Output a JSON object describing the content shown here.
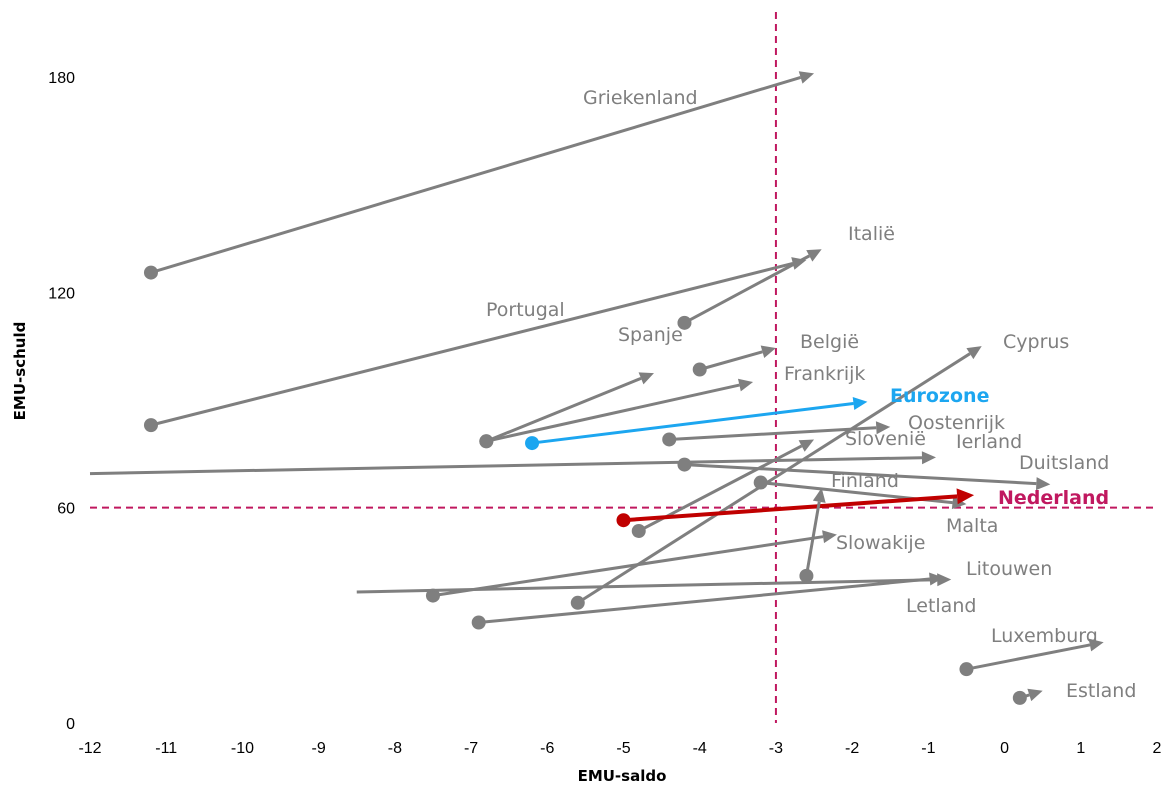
{
  "chart_data": {
    "type": "arrow-scatter",
    "xlabel": "EMU-saldo",
    "ylabel": "EMU-schuld",
    "xlim": [
      -12,
      2
    ],
    "ylim": [
      0,
      190
    ],
    "x_ticks": [
      -12,
      -11,
      -10,
      -9,
      -8,
      -7,
      -6,
      -5,
      -4,
      -3,
      -2,
      -1,
      0,
      1,
      2
    ],
    "y_ticks": [
      0,
      60,
      120,
      180
    ],
    "reference_lines": {
      "x": -3,
      "y": 60,
      "color": "#c0185f"
    },
    "colors": {
      "default": "#7f7f7f",
      "Eurozone": "#1ca6f0",
      "Nederland": "#c00000",
      "Nederland_label": "#c0185f"
    },
    "series": [
      {
        "name": "Griekenland",
        "x0": -11.2,
        "y0": 125.5,
        "x1": -2.5,
        "y1": 181
      },
      {
        "name": "Italië",
        "x0": -4.2,
        "y0": 111.5,
        "x1": -2.4,
        "y1": 132
      },
      {
        "name": "Portugal",
        "x0": -11.2,
        "y0": 83,
        "x1": -2.6,
        "y1": 129
      },
      {
        "name": "Spanje",
        "x0": -6.8,
        "y0": 78.5,
        "x1": -4.6,
        "y1": 97.5
      },
      {
        "name": "België",
        "x0": -4.0,
        "y0": 98.5,
        "x1": -3.0,
        "y1": 104.5
      },
      {
        "name": "Frankrijk",
        "x0": -6.8,
        "y0": 78.5,
        "x1": -3.3,
        "y1": 95
      },
      {
        "name": "Eurozone",
        "x0": -6.2,
        "y0": 78,
        "x1": -1.8,
        "y1": 89.5
      },
      {
        "name": "Cyprus",
        "x0": -5.6,
        "y0": 33.5,
        "x1": -0.3,
        "y1": 105
      },
      {
        "name": "Oostenrijk",
        "x0": -4.4,
        "y0": 79,
        "x1": -1.5,
        "y1": 82.5
      },
      {
        "name": "Slovenië",
        "x0": -4.8,
        "y0": 53.5,
        "x1": -2.5,
        "y1": 79
      },
      {
        "name": "Ierland",
        "x0": -12,
        "y0": 69.5,
        "x1": -0.9,
        "y1": 74
      },
      {
        "name": "Duitsland",
        "x0": -4.2,
        "y0": 72,
        "x1": 0.6,
        "y1": 66.5
      },
      {
        "name": "Finland",
        "x0": -3.2,
        "y0": 67,
        "x1": -0.5,
        "y1": 61
      },
      {
        "name": "Nederland",
        "x0": -5.0,
        "y0": 56.5,
        "x1": -0.4,
        "y1": 63.5
      },
      {
        "name": "Malta",
        "x0": -2.6,
        "y0": 41,
        "x1": -2.4,
        "y1": 65.5
      },
      {
        "name": "Slowakije",
        "x0": -7.5,
        "y0": 35.5,
        "x1": -2.2,
        "y1": 52.5
      },
      {
        "name": "Litouwen",
        "x0": -8.5,
        "y0": 36.5,
        "x1": -0.7,
        "y1": 40
      },
      {
        "name": "Letland",
        "x0": -6.9,
        "y0": 28,
        "x1": -0.8,
        "y1": 40.5
      },
      {
        "name": "Luxemburg",
        "x0": -0.5,
        "y0": 15,
        "x1": 1.3,
        "y1": 22.5
      },
      {
        "name": "Estland",
        "x0": 0.2,
        "y0": 7,
        "x1": 0.5,
        "y1": 9
      }
    ]
  }
}
